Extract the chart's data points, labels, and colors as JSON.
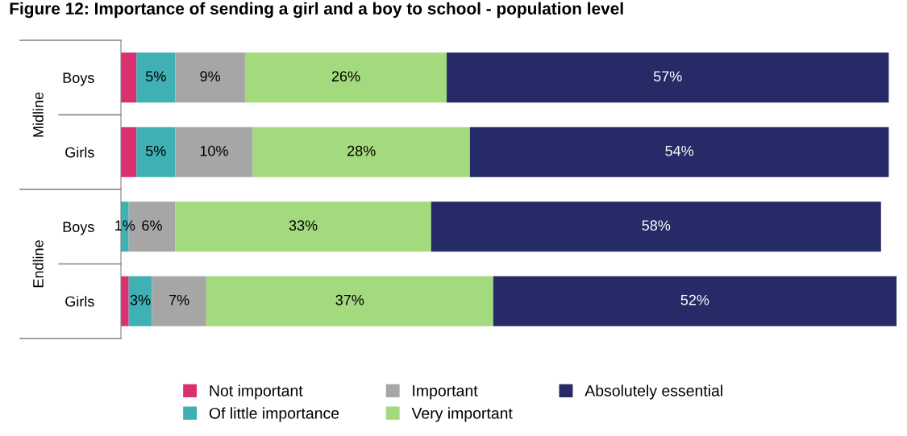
{
  "chart_data": {
    "type": "bar",
    "orientation": "horizontal",
    "stacked": true,
    "title": "Figure 12: Importance of sending a girl and a boy to school - population level",
    "categories": [
      "Boys",
      "Girls",
      "Boys",
      "Girls"
    ],
    "annotations": [
      "Midline",
      "Endline"
    ],
    "tick_labels": "y",
    "grid": false,
    "legend": "bottom",
    "series": [
      {
        "name": "Not important",
        "color": "#d9306f",
        "values": [
          2,
          2,
          0,
          1
        ],
        "value_labels": [
          null,
          null,
          null,
          null
        ]
      },
      {
        "name": "Of little importance",
        "color": "#3fb0b3",
        "values": [
          5,
          5,
          1,
          3
        ],
        "value_labels": [
          "5%",
          "5%",
          "1%",
          "3%"
        ]
      },
      {
        "name": "Important",
        "color": "#a6a6a6",
        "values": [
          9,
          10,
          6,
          7
        ],
        "value_labels": [
          "9%",
          "10%",
          "6%",
          "7%"
        ]
      },
      {
        "name": "Very important",
        "color": "#a3da7d",
        "values": [
          26,
          28,
          33,
          37
        ],
        "value_labels": [
          "26%",
          "28%",
          "33%",
          "37%"
        ]
      },
      {
        "name": "Absolutely essential",
        "color": "#262a66",
        "values": [
          57,
          54,
          58,
          52
        ],
        "value_labels": [
          "57%",
          "54%",
          "58%",
          "52%"
        ]
      }
    ]
  }
}
